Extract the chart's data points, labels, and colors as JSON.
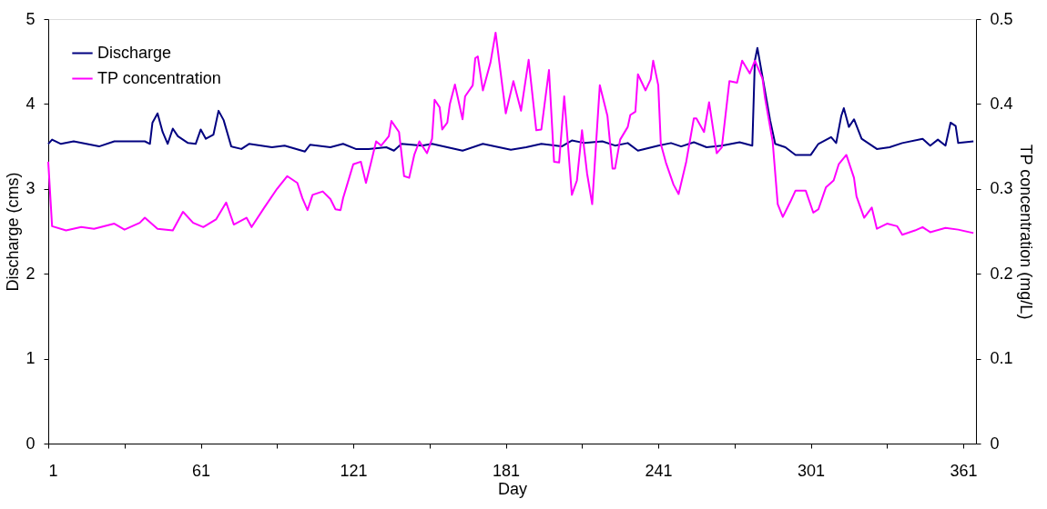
{
  "chart_data": {
    "type": "line",
    "xlabel": "Day",
    "ylabel": "Discharge (cms)",
    "y2label": "TP concentration (mg/L)",
    "xlim": [
      1,
      366
    ],
    "xticks": [
      1,
      {
        "value": 31,
        "label": null
      },
      61,
      {
        "value": 91,
        "label": null
      },
      121,
      {
        "value": 151,
        "label": null
      },
      181,
      {
        "value": 211,
        "label": null
      },
      241,
      {
        "value": 271,
        "label": null
      },
      301,
      {
        "value": 331,
        "label": null
      },
      361
    ],
    "ylim": [
      0,
      5
    ],
    "yticks": [
      0,
      1,
      2,
      3,
      4,
      5
    ],
    "y2lim": [
      0,
      0.5
    ],
    "y2ticks": [
      0,
      0.1,
      0.2,
      0.3,
      0.4,
      0.5
    ],
    "grid": false,
    "legend": "top left",
    "marker": "none",
    "line_style": "solid",
    "series": [
      {
        "name": "Discharge",
        "color": "#000080",
        "x": [
          1,
          2.5,
          6,
          11,
          21,
          27,
          39,
          41,
          42,
          44,
          46,
          48,
          50,
          52,
          56,
          59,
          61,
          63,
          66,
          68,
          70,
          73,
          77,
          80,
          89,
          94,
          102,
          104,
          112,
          117,
          122,
          127,
          134,
          137,
          140,
          148,
          152,
          164,
          172,
          183,
          189,
          195,
          203,
          207,
          212,
          219,
          224,
          229,
          233,
          241,
          246,
          250,
          255,
          260,
          266,
          273,
          278,
          279,
          280,
          282,
          285,
          287,
          291,
          295,
          301,
          304,
          309,
          311,
          313,
          314,
          316,
          318,
          321,
          327,
          332,
          337,
          345,
          348,
          351,
          354,
          356,
          358,
          359,
          365
        ],
        "values": [
          3.53,
          3.58,
          3.53,
          3.56,
          3.5,
          3.56,
          3.56,
          3.53,
          3.78,
          3.89,
          3.67,
          3.53,
          3.71,
          3.62,
          3.54,
          3.53,
          3.7,
          3.59,
          3.64,
          3.92,
          3.81,
          3.5,
          3.47,
          3.53,
          3.49,
          3.51,
          3.44,
          3.52,
          3.49,
          3.53,
          3.47,
          3.47,
          3.49,
          3.45,
          3.53,
          3.51,
          3.53,
          3.45,
          3.53,
          3.46,
          3.49,
          3.53,
          3.5,
          3.57,
          3.54,
          3.56,
          3.51,
          3.54,
          3.45,
          3.51,
          3.54,
          3.5,
          3.55,
          3.49,
          3.51,
          3.55,
          3.51,
          4.51,
          4.66,
          4.32,
          3.81,
          3.53,
          3.49,
          3.4,
          3.4,
          3.53,
          3.61,
          3.54,
          3.86,
          3.95,
          3.73,
          3.82,
          3.59,
          3.47,
          3.49,
          3.54,
          3.59,
          3.51,
          3.58,
          3.51,
          3.78,
          3.74,
          3.54,
          3.56
        ]
      },
      {
        "name": "TP concentration",
        "color": "#ff00ff",
        "axis": "y2",
        "x": [
          1,
          2.5,
          8,
          14,
          19,
          27,
          31,
          37,
          39,
          44,
          50,
          54,
          58,
          62,
          67,
          71,
          74,
          79,
          81,
          86,
          91,
          95,
          99,
          101,
          103,
          105,
          109,
          112,
          114,
          116,
          117,
          119,
          121,
          124,
          126,
          128,
          130,
          132,
          135,
          136,
          139,
          141,
          143,
          145,
          147,
          150,
          152,
          153,
          155,
          156,
          158,
          159,
          161,
          164,
          165,
          168,
          169,
          170,
          172,
          175,
          177,
          181,
          184,
          187,
          190,
          193,
          195,
          198,
          200,
          202,
          204,
          207,
          209,
          211,
          213,
          215,
          218,
          221,
          223,
          224,
          226,
          229,
          230,
          232,
          233,
          236,
          238,
          239,
          241,
          242,
          244,
          247,
          249,
          252,
          255,
          256,
          259,
          261,
          264,
          266,
          269,
          272,
          274,
          277,
          279,
          282,
          283,
          286,
          288,
          290,
          293,
          295,
          299,
          302,
          304,
          307,
          310,
          312,
          315,
          318,
          319,
          322,
          325,
          327,
          331,
          335,
          337,
          342,
          345,
          348,
          354,
          359,
          365
        ],
        "values": [
          0.332,
          0.256,
          0.251,
          0.255,
          0.253,
          0.259,
          0.252,
          0.26,
          0.266,
          0.253,
          0.251,
          0.273,
          0.26,
          0.255,
          0.264,
          0.284,
          0.258,
          0.266,
          0.255,
          0.278,
          0.3,
          0.315,
          0.307,
          0.289,
          0.275,
          0.293,
          0.297,
          0.288,
          0.276,
          0.275,
          0.289,
          0.309,
          0.329,
          0.332,
          0.307,
          0.331,
          0.356,
          0.351,
          0.362,
          0.38,
          0.367,
          0.315,
          0.313,
          0.34,
          0.356,
          0.342,
          0.359,
          0.405,
          0.396,
          0.37,
          0.378,
          0.4,
          0.423,
          0.382,
          0.409,
          0.422,
          0.454,
          0.456,
          0.416,
          0.449,
          0.484,
          0.389,
          0.427,
          0.392,
          0.452,
          0.369,
          0.37,
          0.44,
          0.332,
          0.331,
          0.409,
          0.293,
          0.31,
          0.369,
          0.318,
          0.282,
          0.422,
          0.386,
          0.324,
          0.324,
          0.358,
          0.373,
          0.387,
          0.391,
          0.435,
          0.416,
          0.429,
          0.451,
          0.422,
          0.353,
          0.331,
          0.305,
          0.294,
          0.332,
          0.383,
          0.383,
          0.367,
          0.402,
          0.342,
          0.349,
          0.427,
          0.425,
          0.451,
          0.436,
          0.451,
          0.43,
          0.407,
          0.356,
          0.282,
          0.267,
          0.285,
          0.298,
          0.298,
          0.272,
          0.276,
          0.302,
          0.31,
          0.329,
          0.34,
          0.313,
          0.291,
          0.266,
          0.278,
          0.253,
          0.259,
          0.256,
          0.246,
          0.251,
          0.255,
          0.249,
          0.254,
          0.252,
          0.248
        ]
      }
    ]
  }
}
